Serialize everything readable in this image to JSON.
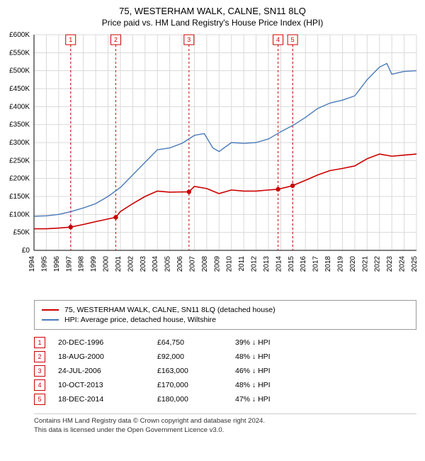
{
  "header": {
    "title": "75, WESTERHAM WALK, CALNE, SN11 8LQ",
    "subtitle": "Price paid vs. HM Land Registry's House Price Index (HPI)"
  },
  "chart": {
    "type": "line",
    "background_color": "#ffffff",
    "grid_color": "#d9d9d9",
    "axis_color": "#000000",
    "x_start_year": 1994,
    "x_end_year": 2025,
    "y_min": 0,
    "y_max": 600000,
    "y_tick_step": 50000,
    "y_tick_labels": [
      "£0",
      "£50K",
      "£100K",
      "£150K",
      "£200K",
      "£250K",
      "£300K",
      "£350K",
      "£400K",
      "£450K",
      "£500K",
      "£550K",
      "£600K"
    ],
    "x_tick_labels": [
      "1994",
      "1995",
      "1996",
      "1997",
      "1998",
      "1999",
      "2000",
      "2001",
      "2002",
      "2003",
      "2004",
      "2005",
      "2006",
      "2007",
      "2008",
      "2009",
      "2010",
      "2011",
      "2012",
      "2013",
      "2014",
      "2015",
      "2016",
      "2017",
      "2018",
      "2019",
      "2020",
      "2021",
      "2022",
      "2023",
      "2024",
      "2025"
    ],
    "series": {
      "property": {
        "color": "#cc0000",
        "width": 1.6,
        "points": [
          [
            1994,
            60000
          ],
          [
            1995,
            60000
          ],
          [
            1996,
            62000
          ],
          [
            1996.97,
            64750
          ],
          [
            1998,
            72000
          ],
          [
            1999,
            80000
          ],
          [
            2000.63,
            92000
          ],
          [
            2001,
            108000
          ],
          [
            2002,
            130000
          ],
          [
            2003,
            150000
          ],
          [
            2004,
            165000
          ],
          [
            2005,
            162000
          ],
          [
            2006.56,
            163000
          ],
          [
            2007,
            178000
          ],
          [
            2008,
            172000
          ],
          [
            2009,
            158000
          ],
          [
            2010,
            168000
          ],
          [
            2011,
            165000
          ],
          [
            2012,
            165000
          ],
          [
            2013,
            168000
          ],
          [
            2013.78,
            170000
          ],
          [
            2014.96,
            180000
          ],
          [
            2016,
            195000
          ],
          [
            2017,
            210000
          ],
          [
            2018,
            222000
          ],
          [
            2019,
            228000
          ],
          [
            2020,
            235000
          ],
          [
            2021,
            255000
          ],
          [
            2022,
            268000
          ],
          [
            2023,
            262000
          ],
          [
            2024,
            265000
          ],
          [
            2025,
            268000
          ]
        ]
      },
      "hpi": {
        "color": "#4a7ab8",
        "width": 1.4,
        "points": [
          [
            1994,
            95000
          ],
          [
            1995,
            96000
          ],
          [
            1996,
            100000
          ],
          [
            1997,
            108000
          ],
          [
            1998,
            118000
          ],
          [
            1999,
            130000
          ],
          [
            2000,
            150000
          ],
          [
            2001,
            175000
          ],
          [
            2002,
            210000
          ],
          [
            2003,
            245000
          ],
          [
            2004,
            280000
          ],
          [
            2005,
            285000
          ],
          [
            2006,
            298000
          ],
          [
            2007,
            320000
          ],
          [
            2007.8,
            325000
          ],
          [
            2008.5,
            285000
          ],
          [
            2009,
            275000
          ],
          [
            2010,
            300000
          ],
          [
            2011,
            298000
          ],
          [
            2012,
            300000
          ],
          [
            2013,
            310000
          ],
          [
            2014,
            330000
          ],
          [
            2015,
            348000
          ],
          [
            2016,
            370000
          ],
          [
            2017,
            395000
          ],
          [
            2018,
            410000
          ],
          [
            2019,
            418000
          ],
          [
            2020,
            430000
          ],
          [
            2021,
            475000
          ],
          [
            2022,
            510000
          ],
          [
            2022.6,
            520000
          ],
          [
            2023,
            490000
          ],
          [
            2024,
            498000
          ],
          [
            2025,
            500000
          ]
        ]
      }
    },
    "sale_markers": [
      {
        "n": "1",
        "year": 1996.97,
        "price": 64750
      },
      {
        "n": "2",
        "year": 2000.63,
        "price": 92000
      },
      {
        "n": "3",
        "year": 2006.56,
        "price": 163000
      },
      {
        "n": "4",
        "year": 2013.78,
        "price": 170000
      },
      {
        "n": "5",
        "year": 2014.96,
        "price": 180000
      }
    ],
    "marker_line_color": "#cc0000",
    "marker_line_dash": "3,3"
  },
  "legend": {
    "items": [
      {
        "color": "#cc0000",
        "label": "75, WESTERHAM WALK, CALNE, SN11 8LQ (detached house)"
      },
      {
        "color": "#4a7ab8",
        "label": "HPI: Average price, detached house, Wiltshire"
      }
    ]
  },
  "sales": [
    {
      "n": "1",
      "date": "20-DEC-1996",
      "price": "£64,750",
      "diff": "39% ↓ HPI"
    },
    {
      "n": "2",
      "date": "18-AUG-2000",
      "price": "£92,000",
      "diff": "48% ↓ HPI"
    },
    {
      "n": "3",
      "date": "24-JUL-2006",
      "price": "£163,000",
      "diff": "46% ↓ HPI"
    },
    {
      "n": "4",
      "date": "10-OCT-2013",
      "price": "£170,000",
      "diff": "48% ↓ HPI"
    },
    {
      "n": "5",
      "date": "18-DEC-2014",
      "price": "£180,000",
      "diff": "47% ↓ HPI"
    }
  ],
  "footnote": {
    "line1": "Contains HM Land Registry data © Crown copyright and database right 2024.",
    "line2": "This data is licensed under the Open Government Licence v3.0."
  }
}
